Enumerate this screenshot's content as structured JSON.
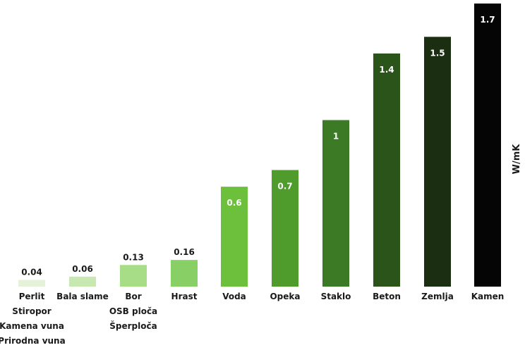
{
  "chart_data": {
    "type": "bar",
    "categories": [
      [
        "Perlit",
        "Stiropor",
        "Kamena vuna",
        "Prirodna vuna"
      ],
      [
        "Bala slame"
      ],
      [
        "Bor",
        "OSB ploča",
        "Šperploča"
      ],
      [
        "Hrast"
      ],
      [
        "Voda"
      ],
      [
        "Opeka"
      ],
      [
        "Staklo"
      ],
      [
        "Beton"
      ],
      [
        "Zemlja"
      ],
      [
        "Kamen"
      ]
    ],
    "values": [
      0.04,
      0.06,
      0.13,
      0.16,
      0.6,
      0.7,
      1,
      1.4,
      1.5,
      1.7
    ],
    "value_labels": [
      "0.04",
      "0.06",
      "0.13",
      "0.16",
      "0.6",
      "0.7",
      "1",
      "1.4",
      "1.5",
      "1.7"
    ],
    "colors": [
      "#e3f2d9",
      "#c8e8b2",
      "#a8dd88",
      "#88cf66",
      "#6cc03c",
      "#4f9b2c",
      "#3c7a26",
      "#2b541b",
      "#1c2e12",
      "#050505"
    ],
    "label_colors": [
      "#1a1a1a",
      "#1a1a1a",
      "#1a1a1a",
      "#1a1a1a",
      "#ffffff",
      "#ffffff",
      "#ffffff",
      "#ffffff",
      "#ffffff",
      "#ffffff"
    ],
    "title": "",
    "xlabel": "",
    "ylabel": "W/mK",
    "ylim": [
      0,
      1.7
    ],
    "grid": false,
    "legend": "none"
  }
}
